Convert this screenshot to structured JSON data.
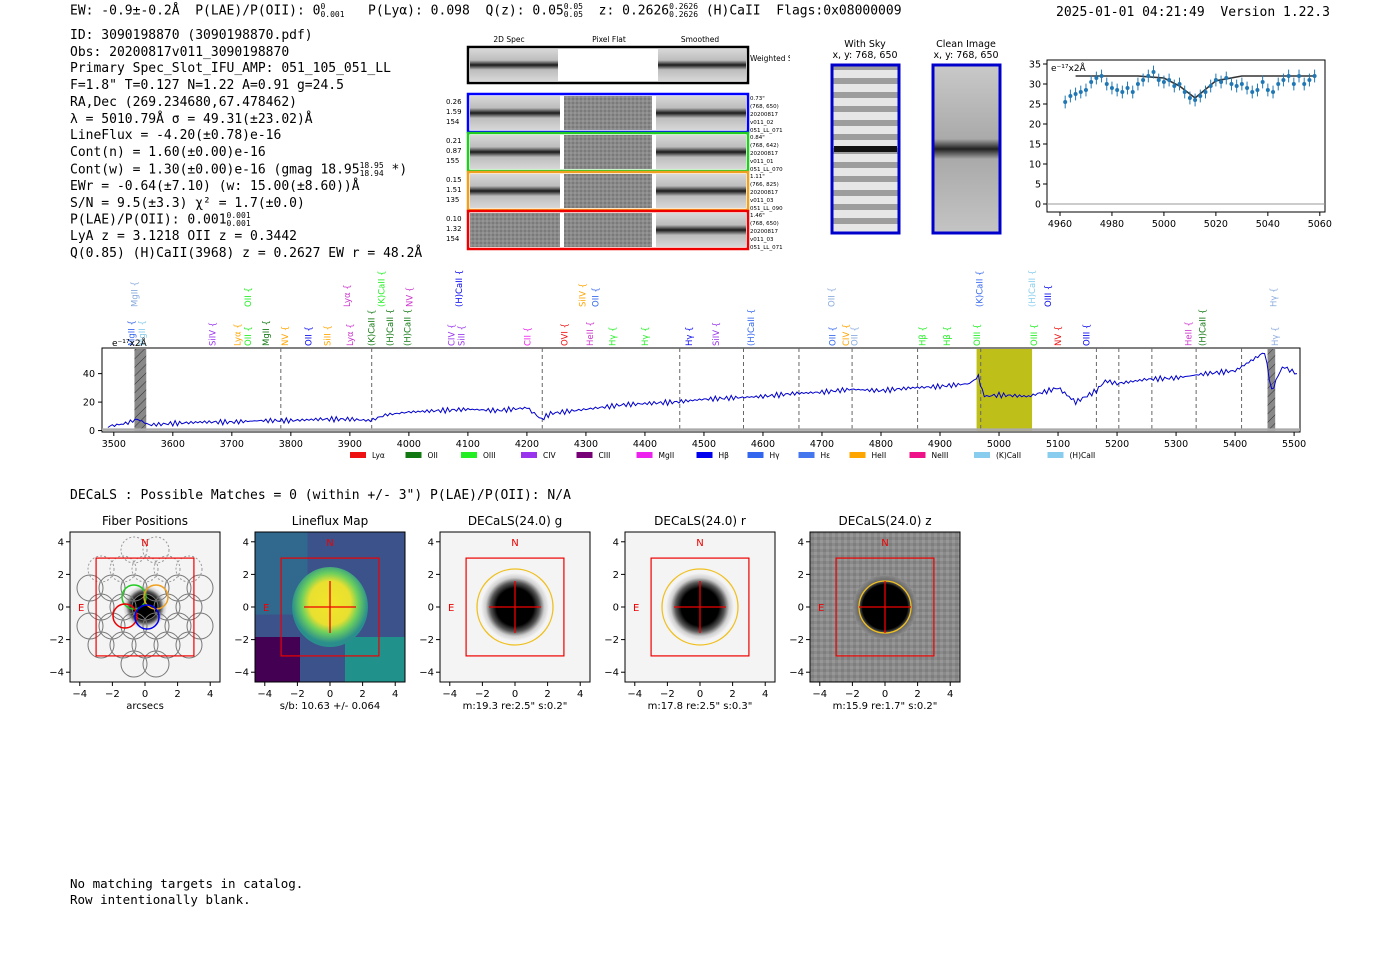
{
  "header": {
    "ew": "EW: -0.9±-0.2Å",
    "plae_label": "P(LAE)/P(OII): 0",
    "plae_sup": "0",
    "plae_sub": "0.001",
    "plya": "P(Lyα): 0.098",
    "qz": "Q(z): 0.05",
    "qz_sup": "0.05",
    "qz_sub": "0.05",
    "z": "z: 0.2626",
    "z_sup": "0.2626",
    "z_sub": "0.2626",
    "line": "(H)CaII",
    "flags": "Flags:0x08000009",
    "datetime": "2025-01-01 04:21:49",
    "version": "Version 1.22.3"
  },
  "info": {
    "id": "ID: 3090198870 (3090198870.pdf)",
    "obs": "Obs: 20200817v011_3090198870",
    "primary": "Primary Spec_Slot_IFU_AMP: 051_105_051_LL",
    "fiber": "F=1.8\"  T=0.127  N=1.22  A=0.91  g=24.5",
    "radec": "RA,Dec (269.234680,67.478462)",
    "lambda": "λ = 5010.79Å  σ = 49.31(±23.02)Å",
    "lineflux": "LineFlux = -4.20(±0.78)e-16",
    "contn": "Cont(n) = 1.60(±0.00)e-16",
    "contw": "Cont(w) = 1.30(±0.00)e-16 (gmag 18.95",
    "contw_sup": "18.95",
    "contw_sub": "18.94",
    "contw_end": " *)",
    "ewr": "EWr = -0.64(±7.10) (w: 15.00(±8.60))Å",
    "sn": "S/N = 9.5(±3.3)  χ² = 1.7(±0.0)",
    "plae": "P(LAE)/P(OII): 0.001",
    "plae_sup": "0.001",
    "plae_sub": "0.001",
    "lya": "LyA z = 3.1218  OII z = 0.3442",
    "q": "Q(0.85) (H)CaII(3968) z = 0.2627  EW r = 48.2Å"
  },
  "cutouts": {
    "col_labels": [
      "2D Spec",
      "Pixel Flat",
      "Smoothed"
    ],
    "weighted_label": "Weighted Sum",
    "rows": [
      {
        "left": [
          "0.26",
          "1.59",
          "154"
        ],
        "right": [
          "0.73\"",
          "(768, 650)",
          "20200817",
          "v011_02",
          "051_LL_071"
        ],
        "color": "#0000ff"
      },
      {
        "left": [
          "0.21",
          "0.87",
          "155"
        ],
        "right": [
          "0.84\"",
          "(768, 642)",
          "20200817",
          "v011_01",
          "051_LL_070"
        ],
        "color": "#22cc22"
      },
      {
        "left": [
          "0.15",
          "1.51",
          "135"
        ],
        "right": [
          "1.11\"",
          "(766, 825)",
          "20200817",
          "v011_03",
          "051_LL_090"
        ],
        "color": "#f0a020"
      },
      {
        "left": [
          "0.10",
          "1.32",
          "154"
        ],
        "right": [
          "1.46\"",
          "(768, 650)",
          "20200817",
          "v011_03",
          "051_LL_071"
        ],
        "color": "#ee0000"
      }
    ]
  },
  "sky_panels": {
    "with_sky": "With Sky",
    "with_sky_xy": "x, y: 768, 650",
    "clean": "Clean Image",
    "clean_xy": "x, y: 768, 650"
  },
  "zoom_chart": {
    "unit": "e⁻¹⁷x2Å",
    "x_ticks": [
      4960,
      4980,
      5000,
      5020,
      5040,
      5060
    ],
    "y_ticks": [
      0,
      5,
      10,
      15,
      20,
      25,
      30,
      35
    ]
  },
  "full_spectrum": {
    "unit": "e⁻¹⁷x2Å",
    "x_ticks": [
      3500,
      3600,
      3700,
      3800,
      3900,
      4000,
      4100,
      4200,
      4300,
      4400,
      4500,
      4600,
      4700,
      4800,
      4900,
      5000,
      5100,
      5200,
      5300,
      5400,
      5500
    ],
    "y_ticks": [
      0,
      20,
      40
    ],
    "legend": [
      {
        "label": "Lyα",
        "color": "#ee1111"
      },
      {
        "label": "OII",
        "color": "#117711"
      },
      {
        "label": "OIII",
        "color": "#22ee22"
      },
      {
        "label": "CIV",
        "color": "#9933ee"
      },
      {
        "label": "CIII",
        "color": "#770077"
      },
      {
        "label": "MgII",
        "color": "#ee22ee"
      },
      {
        "label": "Hβ",
        "color": "#0000ee"
      },
      {
        "label": "Hγ",
        "color": "#3366ee"
      },
      {
        "label": "Hε",
        "color": "#4477ee"
      },
      {
        "label": "HeII",
        "color": "#ffa500"
      },
      {
        "label": "NeIII",
        "color": "#ee1188"
      },
      {
        "label": "(K)CaII",
        "color": "#88ccee"
      },
      {
        "label": "(H)CaII",
        "color": "#88ccee"
      }
    ],
    "upper_labels": [
      {
        "t": "MgII",
        "w": 3535,
        "c": "#88aadd"
      },
      {
        "t": "OII",
        "w": 3727,
        "c": "#22ee22"
      },
      {
        "t": "Lyα",
        "w": 3895,
        "c": "#cc33cc"
      },
      {
        "t": "(K)CaII",
        "w": 3954,
        "c": "#22ee22"
      },
      {
        "t": "NV",
        "w": 4001,
        "c": "#cc33cc"
      },
      {
        "t": "(H)CaII",
        "w": 4085,
        "c": "#0000ee"
      },
      {
        "t": "SiIV",
        "w": 4294,
        "c": "#ffa500"
      },
      {
        "t": "OII",
        "w": 4316,
        "c": "#3366ee"
      },
      {
        "t": "OII",
        "w": 4716,
        "c": "#88aadd"
      },
      {
        "t": "(K)CaII",
        "w": 4967,
        "c": "#3366ee"
      },
      {
        "t": "(H)CaII",
        "w": 5056,
        "c": "#88ccee"
      },
      {
        "t": "OIII",
        "w": 5083,
        "c": "#0000ee"
      },
      {
        "t": "Hγ",
        "w": 5465,
        "c": "#88aadd"
      }
    ],
    "lower_labels": [
      {
        "t": "MgII",
        "w": 3530,
        "c": "#3366ee"
      },
      {
        "t": "MgII",
        "w": 3548,
        "c": "#88ccee"
      },
      {
        "t": "SiIV",
        "w": 3667,
        "c": "#9933ee"
      },
      {
        "t": "Lyα",
        "w": 3710,
        "c": "#ffa500"
      },
      {
        "t": "OII",
        "w": 3727,
        "c": "#22ee22"
      },
      {
        "t": "MgII",
        "w": 3758,
        "c": "#117711"
      },
      {
        "t": "NV",
        "w": 3790,
        "c": "#ffa500"
      },
      {
        "t": "OII",
        "w": 3830,
        "c": "#0000ee"
      },
      {
        "t": "SiII",
        "w": 3862,
        "c": "#ffa500"
      },
      {
        "t": "Lyα",
        "w": 3900,
        "c": "#cc33cc"
      },
      {
        "t": "(K)CaII",
        "w": 3937,
        "c": "#117711"
      },
      {
        "t": "(H)CaII",
        "w": 3968,
        "c": "#117711"
      },
      {
        "t": "(H)CaII",
        "w": 3998,
        "c": "#117711"
      },
      {
        "t": "CIV",
        "w": 4072,
        "c": "#9933ee"
      },
      {
        "t": "SiII",
        "w": 4089,
        "c": "#9933ee"
      },
      {
        "t": "CII",
        "w": 4201,
        "c": "#ee22ee"
      },
      {
        "t": "OVI",
        "w": 4264,
        "c": "#ee1111"
      },
      {
        "t": "HeII",
        "w": 4307,
        "c": "#cc33cc"
      },
      {
        "t": "Hγ",
        "w": 4345,
        "c": "#22ee22"
      },
      {
        "t": "Hγ",
        "w": 4400,
        "c": "#22ee22"
      },
      {
        "t": "Hγ",
        "w": 4475,
        "c": "#0000ee"
      },
      {
        "t": "SiIV",
        "w": 4520,
        "c": "#9933ee"
      },
      {
        "t": "(H)CaII",
        "w": 4580,
        "c": "#3366ee"
      },
      {
        "t": "OII",
        "w": 4718,
        "c": "#3366ee"
      },
      {
        "t": "CIV",
        "w": 4741,
        "c": "#ffa500"
      },
      {
        "t": "OII",
        "w": 4755,
        "c": "#88aadd"
      },
      {
        "t": "Hβ",
        "w": 4870,
        "c": "#22ee22"
      },
      {
        "t": "Hβ",
        "w": 4912,
        "c": "#22ee22"
      },
      {
        "t": "OIII",
        "w": 4963,
        "c": "#22ee22"
      },
      {
        "t": "OIII",
        "w": 5059,
        "c": "#22ee22"
      },
      {
        "t": "NV",
        "w": 5100,
        "c": "#ee1111"
      },
      {
        "t": "OIII",
        "w": 5148,
        "c": "#0000ee"
      },
      {
        "t": "HeII",
        "w": 5321,
        "c": "#cc33cc"
      },
      {
        "t": "(H)CaII",
        "w": 5345,
        "c": "#117711"
      },
      {
        "t": "Hγ",
        "w": 5468,
        "c": "#88aadd"
      }
    ]
  },
  "chart_data": [
    {
      "type": "scatter",
      "title": "",
      "ylabel": "e-17 x2Å",
      "xlim": [
        4955,
        5062
      ],
      "ylim": [
        -2,
        36
      ],
      "x": [
        4962,
        4964,
        4966,
        4968,
        4970,
        4972,
        4974,
        4976,
        4978,
        4980,
        4982,
        4984,
        4986,
        4988,
        4990,
        4992,
        4994,
        4996,
        4998,
        5000,
        5002,
        5004,
        5006,
        5008,
        5010,
        5012,
        5014,
        5016,
        5018,
        5020,
        5022,
        5024,
        5026,
        5028,
        5030,
        5032,
        5034,
        5036,
        5038,
        5040,
        5042,
        5044,
        5046,
        5048,
        5050,
        5052,
        5054,
        5056,
        5058
      ],
      "y": [
        25.5,
        27.0,
        27.5,
        28.0,
        28.5,
        30.5,
        31.5,
        32.0,
        30.0,
        29.0,
        28.5,
        28.0,
        29.0,
        28.0,
        30.0,
        31.0,
        32.0,
        33.0,
        31.0,
        30.5,
        31.0,
        29.5,
        30.0,
        28.0,
        26.5,
        26.0,
        27.0,
        28.0,
        29.5,
        31.0,
        30.5,
        31.5,
        30.0,
        29.5,
        30.0,
        29.0,
        28.0,
        28.5,
        30.5,
        28.5,
        28.0,
        30.0,
        31.0,
        32.0,
        30.0,
        32.0,
        30.0,
        31.0,
        32.0
      ],
      "err": 1.6,
      "model": {
        "x": [
          4966,
          4990,
          5000,
          5006,
          5012,
          5020,
          5030,
          5058
        ],
        "y": [
          32.0,
          32.0,
          31.5,
          29.5,
          26.5,
          30.8,
          32.0,
          32.0
        ]
      }
    },
    {
      "type": "line",
      "title": "",
      "ylabel": "e-17 x2Å",
      "xlim": [
        3480,
        5510
      ],
      "ylim": [
        -1,
        58
      ],
      "highlight_band": [
        4962,
        5056
      ],
      "hatched_bands": [
        [
          3535,
          3555
        ],
        [
          5455,
          5468
        ]
      ],
      "dashed_lines": [
        3783,
        3937,
        4226,
        4459,
        4567,
        4661,
        4751,
        4862,
        4969,
        5165,
        5203,
        5259,
        5334,
        5411
      ],
      "series": [
        {
          "name": "spectrum",
          "color": "#0000cc",
          "x": [
            3490,
            3520,
            3540,
            3560,
            3600,
            3650,
            3700,
            3750,
            3800,
            3850,
            3900,
            3935,
            3960,
            4000,
            4050,
            4100,
            4150,
            4200,
            4225,
            4240,
            4280,
            4320,
            4360,
            4400,
            4450,
            4500,
            4550,
            4600,
            4650,
            4700,
            4750,
            4800,
            4850,
            4900,
            4950,
            4965,
            4975,
            5000,
            5050,
            5100,
            5130,
            5165,
            5180,
            5200,
            5250,
            5300,
            5350,
            5400,
            5450,
            5462,
            5480,
            5505
          ],
          "values": [
            3,
            5,
            8,
            4,
            5,
            6,
            6,
            7,
            7,
            8,
            8,
            7,
            11,
            13,
            14,
            15,
            14,
            16,
            8,
            12,
            14,
            16,
            18,
            19,
            20,
            22,
            23,
            24,
            26,
            27,
            29,
            28,
            30,
            31,
            33,
            38,
            24,
            25,
            24,
            30,
            20,
            28,
            35,
            33,
            36,
            37,
            40,
            42,
            55,
            28,
            45,
            40
          ]
        }
      ]
    },
    {
      "type": "heatmap",
      "title": "Fiber Positions",
      "xlabel": "arcsecs",
      "xlim": [
        -4.6,
        4.6
      ],
      "ylim": [
        -4.6,
        4.6
      ],
      "x_ticks": [
        -4,
        -2,
        0,
        2,
        4
      ],
      "y_ticks": [
        -4,
        -2,
        0,
        2,
        4
      ]
    },
    {
      "type": "heatmap",
      "title": "Lineflux Map",
      "xlabel": "s/b: 10.63 +/- 0.064",
      "xlim": [
        -4.6,
        4.6
      ],
      "ylim": [
        -4.6,
        4.6
      ]
    },
    {
      "type": "heatmap",
      "title": "DECaLS(24.0) g",
      "xlabel": "m:19.3  re:2.5\"  s:0.2\""
    },
    {
      "type": "heatmap",
      "title": "DECaLS(24.0) r",
      "xlabel": "m:17.8  re:2.5\"  s:0.3\""
    },
    {
      "type": "heatmap",
      "title": "DECaLS(24.0) z",
      "xlabel": "m:15.9  re:1.7\"  s:0.2\""
    }
  ],
  "thumbnails": {
    "compass_n": "N",
    "compass_e": "E",
    "tick_labels": [
      "−4",
      "−2",
      "0",
      "2",
      "4"
    ]
  },
  "decals_line": "DECaLS : Possible Matches = 0 (within +/- 3\")  P(LAE)/P(OII): N/A",
  "footer": [
    "No matching targets in catalog.",
    "Row intentionally blank."
  ]
}
